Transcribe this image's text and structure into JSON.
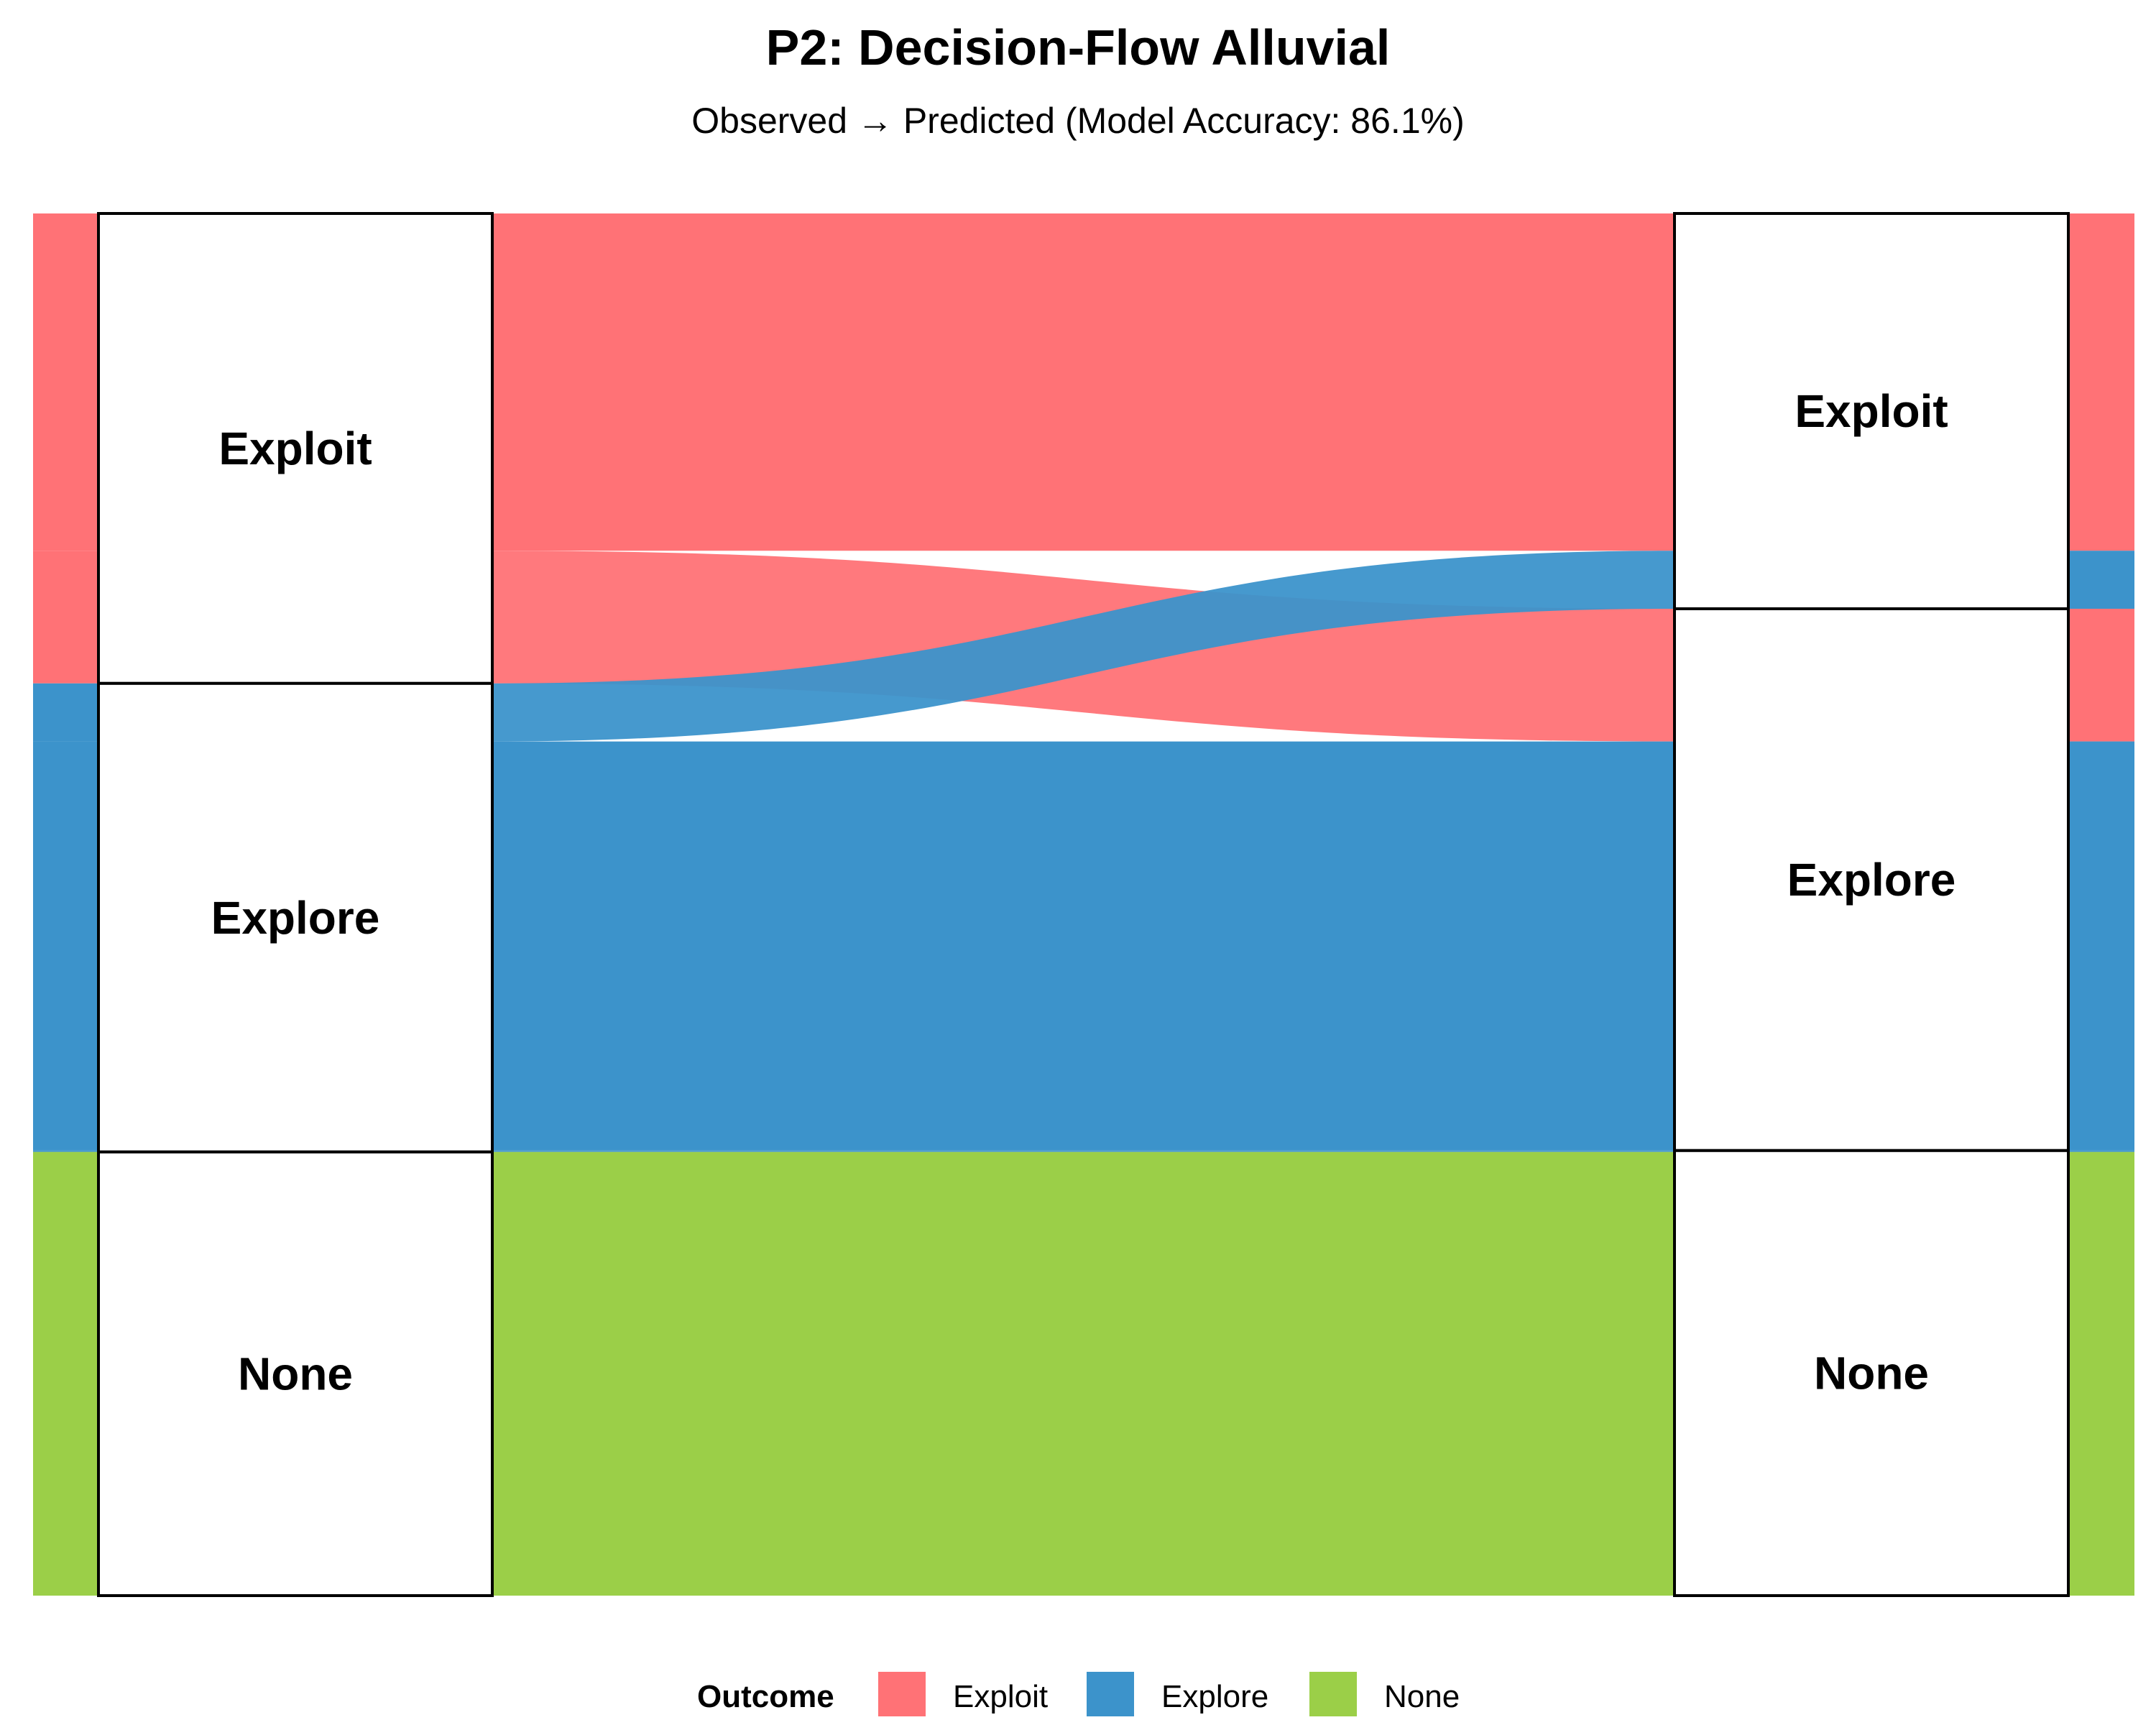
{
  "chart_data": {
    "type": "alluvial",
    "title": "P2: Decision-Flow Alluvial",
    "subtitle": "Observed → Predicted (Model Accuracy: 86.1%)",
    "axes": [
      "Observed",
      "Predicted"
    ],
    "categories": [
      "Exploit",
      "Explore",
      "None"
    ],
    "colors": {
      "Exploit": "#FF7276",
      "Explore": "#3C93CB",
      "None": "#9BCF48"
    },
    "flows": [
      {
        "from": "Exploit",
        "to": "Exploit",
        "value": 244
      },
      {
        "from": "Exploit",
        "to": "Explore",
        "value": 96
      },
      {
        "from": "Explore",
        "to": "Exploit",
        "value": 42
      },
      {
        "from": "Explore",
        "to": "Explore",
        "value": 296
      },
      {
        "from": "Explore",
        "to": "None",
        "value": 1
      },
      {
        "from": "None",
        "to": "None",
        "value": 321
      }
    ],
    "legend": {
      "title": "Outcome",
      "position": "bottom",
      "entries": [
        "Exploit",
        "Explore",
        "None"
      ]
    }
  }
}
